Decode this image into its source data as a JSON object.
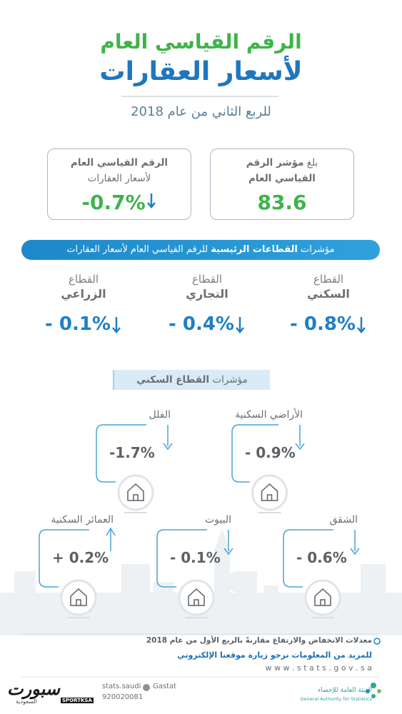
{
  "header": {
    "title_line1": "الرقم القياسي العام",
    "title_line2": "لأسعار العقارات",
    "subtitle": "للربع الثاني من عام 2018"
  },
  "cards": [
    {
      "prefix": "بلغ",
      "label_bold": "مؤشر الرقم",
      "label_line2": "القياسي العام",
      "value": "83.6"
    },
    {
      "label_bold": "الرقم القياسي العام",
      "label_line2": "لأسعار العقارات",
      "value": "-0.7%"
    }
  ],
  "sectors_banner": {
    "prefix": "مؤشرات",
    "bold": "القطاعات الرئيسية",
    "suffix": "للرقم القياسي العام لأسعار العقارات"
  },
  "sectors": [
    {
      "word": "القطاع",
      "name": "السكني",
      "value": "- 0.8%"
    },
    {
      "word": "القطاع",
      "name": "التجاري",
      "value": "- 0.4%"
    },
    {
      "word": "القطاع",
      "name": "الزراعي",
      "value": "- 0.1%"
    }
  ],
  "residential_header": {
    "prefix": "مؤشرات",
    "bold": "القطاع السكني"
  },
  "residential": [
    {
      "label": "الأراضي السكنية",
      "value": "- 0.9%"
    },
    {
      "label": "الفلل",
      "value": "-1.7%"
    },
    {
      "label": "الشقق",
      "value": "- 0.6%"
    },
    {
      "label": "البيوت",
      "value": "- 0.1%"
    },
    {
      "label": "العمائر السكنية",
      "value": "+ 0.2%"
    }
  ],
  "footer": {
    "note": "معدلات الانخفاض والارتفاع مقارنةً بالربع الأول من عام 2018",
    "more": "للمزيد من المعلومات نرجو زيارة موقعنا الإلكتروني",
    "website": "w w w . s t a t s . g o v . s a",
    "social1": "stats.saudi",
    "phone": "920020081",
    "social2": "Gastat",
    "org_ar": "الهيئة العامة للإحصاء",
    "org_en": "General Authority for Statistics",
    "brand_ar": "سبورت",
    "brand_en": "SPORTKSA",
    "brand_sub": "السعودية"
  }
}
